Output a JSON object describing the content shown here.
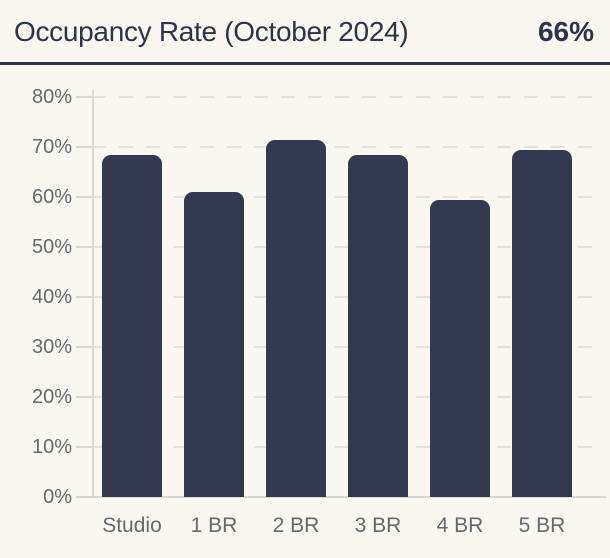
{
  "header": {
    "title": "Occupancy Rate (October 2024)",
    "value": "66%"
  },
  "chart_data": {
    "type": "bar",
    "title": "Occupancy Rate (October 2024)",
    "annotation_value": "66%",
    "categories": [
      "Studio",
      "1 BR",
      "2 BR",
      "3 BR",
      "4 BR",
      "5 BR"
    ],
    "values": [
      68.5,
      61,
      71.5,
      68.5,
      59.5,
      69.5
    ],
    "unit": "%",
    "xlabel": "",
    "ylabel": "",
    "ylim": [
      0,
      80
    ],
    "ytick_step": 10,
    "ytick_labels_top_to_bottom": [
      "80%",
      "70%",
      "60%",
      "50%",
      "40%",
      "30%",
      "20%",
      "10%",
      "0%"
    ],
    "grid": "horizontal-dashed",
    "legend": "none",
    "bar_color": "#323a52"
  },
  "colors": {
    "background": "#faf7f0",
    "navy": "#2d3349",
    "bar": "#323a52",
    "grid": "#e5e2db",
    "axis": "#dcd9d2",
    "axis_strong": "#d9d6cf",
    "label_gray": "#66686e"
  }
}
